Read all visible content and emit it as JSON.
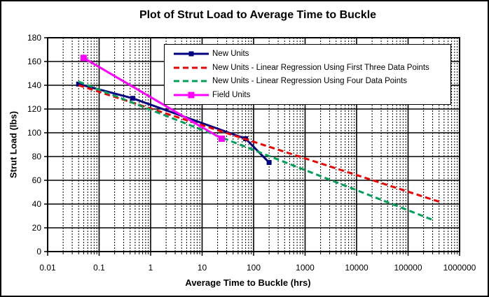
{
  "chart_data": {
    "type": "line",
    "title": "Plot of Strut Load to Average Time to Buckle",
    "xlabel": "Average Time to Buckle (hrs)",
    "ylabel": "Strut Load (lbs)",
    "x_scale": "log",
    "xlim": [
      0.01,
      1000000
    ],
    "ylim": [
      0,
      180
    ],
    "x_ticks": [
      0.01,
      0.1,
      1,
      10,
      100,
      1000,
      10000,
      100000,
      1000000
    ],
    "x_tick_labels": [
      "0.01",
      "0.1",
      "1",
      "10",
      "100",
      "1000",
      "10000",
      "100000",
      "1000000"
    ],
    "y_ticks": [
      0,
      20,
      40,
      60,
      80,
      100,
      120,
      140,
      160,
      180
    ],
    "grid": {
      "major": true,
      "minor_x": true,
      "color": "#000000"
    },
    "legend_position": "top-right-inside",
    "series": [
      {
        "name": "New Units",
        "color": "#000080",
        "style": "solid",
        "marker": "square",
        "marker_size": 7,
        "points": [
          [
            0.04,
            141
          ],
          [
            0.45,
            129
          ],
          [
            70,
            95
          ],
          [
            200,
            75
          ]
        ]
      },
      {
        "name": "New Units - Linear Regression Using First Three Data Points",
        "color": "#EE0000",
        "style": "dashed",
        "marker": "none",
        "marker_size": 0,
        "points": [
          [
            0.04,
            140
          ],
          [
            400000,
            42
          ]
        ]
      },
      {
        "name": "New Units - Linear Regression Using Four Data Points",
        "color": "#00A05A",
        "style": "dashed",
        "marker": "none",
        "marker_size": 0,
        "points": [
          [
            0.04,
            143
          ],
          [
            330000,
            26
          ]
        ]
      },
      {
        "name": "Field Units",
        "color": "#FF00FF",
        "style": "solid",
        "marker": "square",
        "marker_size": 9,
        "points": [
          [
            0.05,
            163
          ],
          [
            24,
            95
          ]
        ]
      }
    ]
  }
}
